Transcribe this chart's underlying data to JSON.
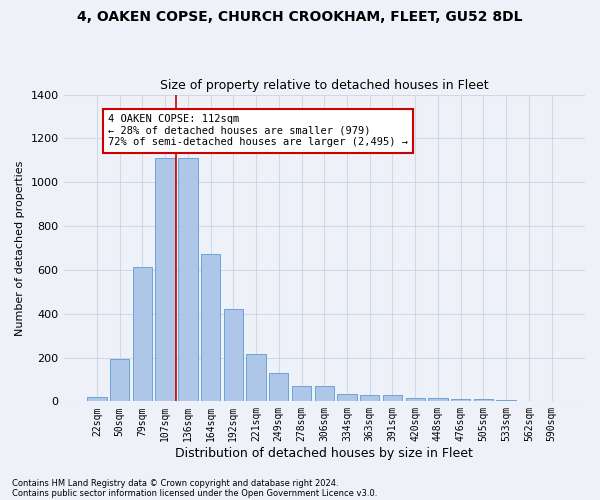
{
  "title1": "4, OAKEN COPSE, CHURCH CROOKHAM, FLEET, GU52 8DL",
  "title2": "Size of property relative to detached houses in Fleet",
  "xlabel": "Distribution of detached houses by size in Fleet",
  "ylabel": "Number of detached properties",
  "bar_labels": [
    "22sqm",
    "50sqm",
    "79sqm",
    "107sqm",
    "136sqm",
    "164sqm",
    "192sqm",
    "221sqm",
    "249sqm",
    "278sqm",
    "306sqm",
    "334sqm",
    "363sqm",
    "391sqm",
    "420sqm",
    "448sqm",
    "476sqm",
    "505sqm",
    "533sqm",
    "562sqm",
    "590sqm"
  ],
  "bar_values": [
    18,
    193,
    611,
    1110,
    1110,
    671,
    422,
    215,
    130,
    72,
    72,
    35,
    28,
    28,
    13,
    13,
    10,
    10,
    5,
    0,
    0
  ],
  "bar_color": "#aec6e8",
  "bar_edge_color": "#5b9bd5",
  "grid_color": "#d0d8e8",
  "background_color": "#eef2f8",
  "vline_color": "#cc0000",
  "annotation_text": "4 OAKEN COPSE: 112sqm\n← 28% of detached houses are smaller (979)\n72% of semi-detached houses are larger (2,495) →",
  "annotation_box_color": "#ffffff",
  "annotation_box_edge": "#cc0000",
  "footer1": "Contains HM Land Registry data © Crown copyright and database right 2024.",
  "footer2": "Contains public sector information licensed under the Open Government Licence v3.0.",
  "ylim": [
    0,
    1400
  ],
  "yticks": [
    0,
    200,
    400,
    600,
    800,
    1000,
    1200,
    1400
  ]
}
